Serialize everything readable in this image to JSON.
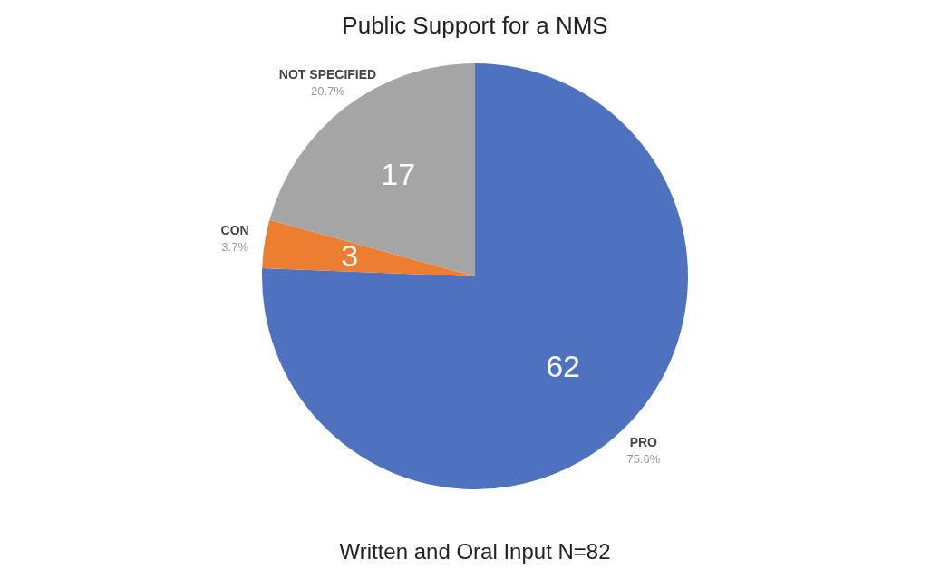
{
  "chart_data": {
    "type": "pie",
    "title": "Public Support for a NMS",
    "categories": [
      "PRO",
      "CON",
      "NOT SPECIFIED"
    ],
    "values": [
      62,
      3,
      17
    ],
    "colors": [
      "#4f72c0",
      "#ed7d31",
      "#a5a5a5"
    ],
    "data_labels": true,
    "legend": false,
    "annotations": [
      {
        "text": "75.6%",
        "x": "PRO"
      },
      {
        "text": "3.7%",
        "x": "CON"
      },
      {
        "text": "20.7%",
        "x": "NOT SPECIFIED"
      },
      "Written and Oral Input      N=82"
    ]
  }
}
